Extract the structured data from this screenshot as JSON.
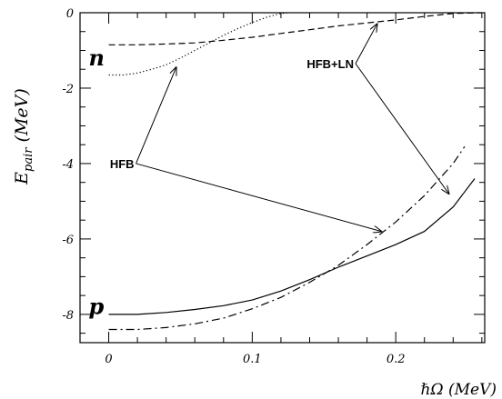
{
  "chart_data": {
    "type": "line",
    "xlabel": "ℏΩ (MeV)",
    "ylabel_main": "E",
    "ylabel_sub": "pair",
    "ylabel_unit": " (MeV)",
    "xlim": [
      -0.02,
      0.262
    ],
    "ylim": [
      -8.75,
      0
    ],
    "x_ticks": [
      0,
      0.1,
      0.2
    ],
    "x_tick_labels": [
      "0",
      "0.1",
      "0.2"
    ],
    "y_ticks": [
      0,
      -2,
      -4,
      -6,
      -8
    ],
    "y_tick_labels": [
      "0",
      "-2",
      "-4",
      "-6",
      "-8"
    ],
    "grid": false,
    "series": [
      {
        "style": "dotted",
        "x": [
          0,
          0.01,
          0.02,
          0.03,
          0.04,
          0.05,
          0.06,
          0.07,
          0.08,
          0.09,
          0.1,
          0.11,
          0.12,
          0.125
        ],
        "y": [
          -1.65,
          -1.65,
          -1.6,
          -1.5,
          -1.38,
          -1.2,
          -1.0,
          -0.8,
          -0.6,
          -0.42,
          -0.26,
          -0.12,
          -0.02,
          0.0
        ]
      },
      {
        "style": "dashed",
        "x": [
          0,
          0.02,
          0.04,
          0.06,
          0.08,
          0.1,
          0.12,
          0.14,
          0.16,
          0.18,
          0.2,
          0.22,
          0.24,
          0.26
        ],
        "y": [
          -0.85,
          -0.85,
          -0.83,
          -0.8,
          -0.73,
          -0.65,
          -0.55,
          -0.45,
          -0.35,
          -0.27,
          -0.19,
          -0.1,
          -0.02,
          0.0
        ]
      },
      {
        "style": "solid",
        "x": [
          0,
          0.02,
          0.04,
          0.06,
          0.08,
          0.1,
          0.12,
          0.14,
          0.16,
          0.18,
          0.2,
          0.22,
          0.24,
          0.255
        ],
        "y": [
          -8.0,
          -8.0,
          -7.95,
          -7.87,
          -7.77,
          -7.62,
          -7.38,
          -7.08,
          -6.75,
          -6.45,
          -6.15,
          -5.8,
          -5.15,
          -4.4
        ]
      },
      {
        "style": "dashdot",
        "x": [
          0,
          0.02,
          0.04,
          0.06,
          0.08,
          0.1,
          0.12,
          0.14,
          0.16,
          0.18,
          0.2,
          0.22,
          0.24,
          0.248
        ],
        "y": [
          -8.4,
          -8.4,
          -8.35,
          -8.25,
          -8.1,
          -7.85,
          -7.55,
          -7.15,
          -6.7,
          -6.15,
          -5.55,
          -4.85,
          -4.0,
          -3.55
        ]
      }
    ],
    "labels": {
      "n": "n",
      "p": "p",
      "hfb": "HFB",
      "hfbln": "HFB+LN"
    },
    "label_anchors": {
      "n": {
        "x": -0.014,
        "y": -1.2
      },
      "p": {
        "x": -0.014,
        "y": -7.8
      },
      "hfb": {
        "x": 0.019,
        "y": -4.0
      },
      "hfbln": {
        "x": 0.172,
        "y": -1.35
      }
    },
    "arrows": [
      {
        "from": [
          0.019,
          -4.0
        ],
        "to": [
          0.047,
          -1.45
        ]
      },
      {
        "from": [
          0.019,
          -4.0
        ],
        "to": [
          0.19,
          -5.8
        ]
      },
      {
        "from": [
          0.172,
          -1.35
        ],
        "to": [
          0.187,
          -0.3
        ]
      },
      {
        "from": [
          0.172,
          -1.35
        ],
        "to": [
          0.237,
          -4.8
        ]
      }
    ]
  }
}
